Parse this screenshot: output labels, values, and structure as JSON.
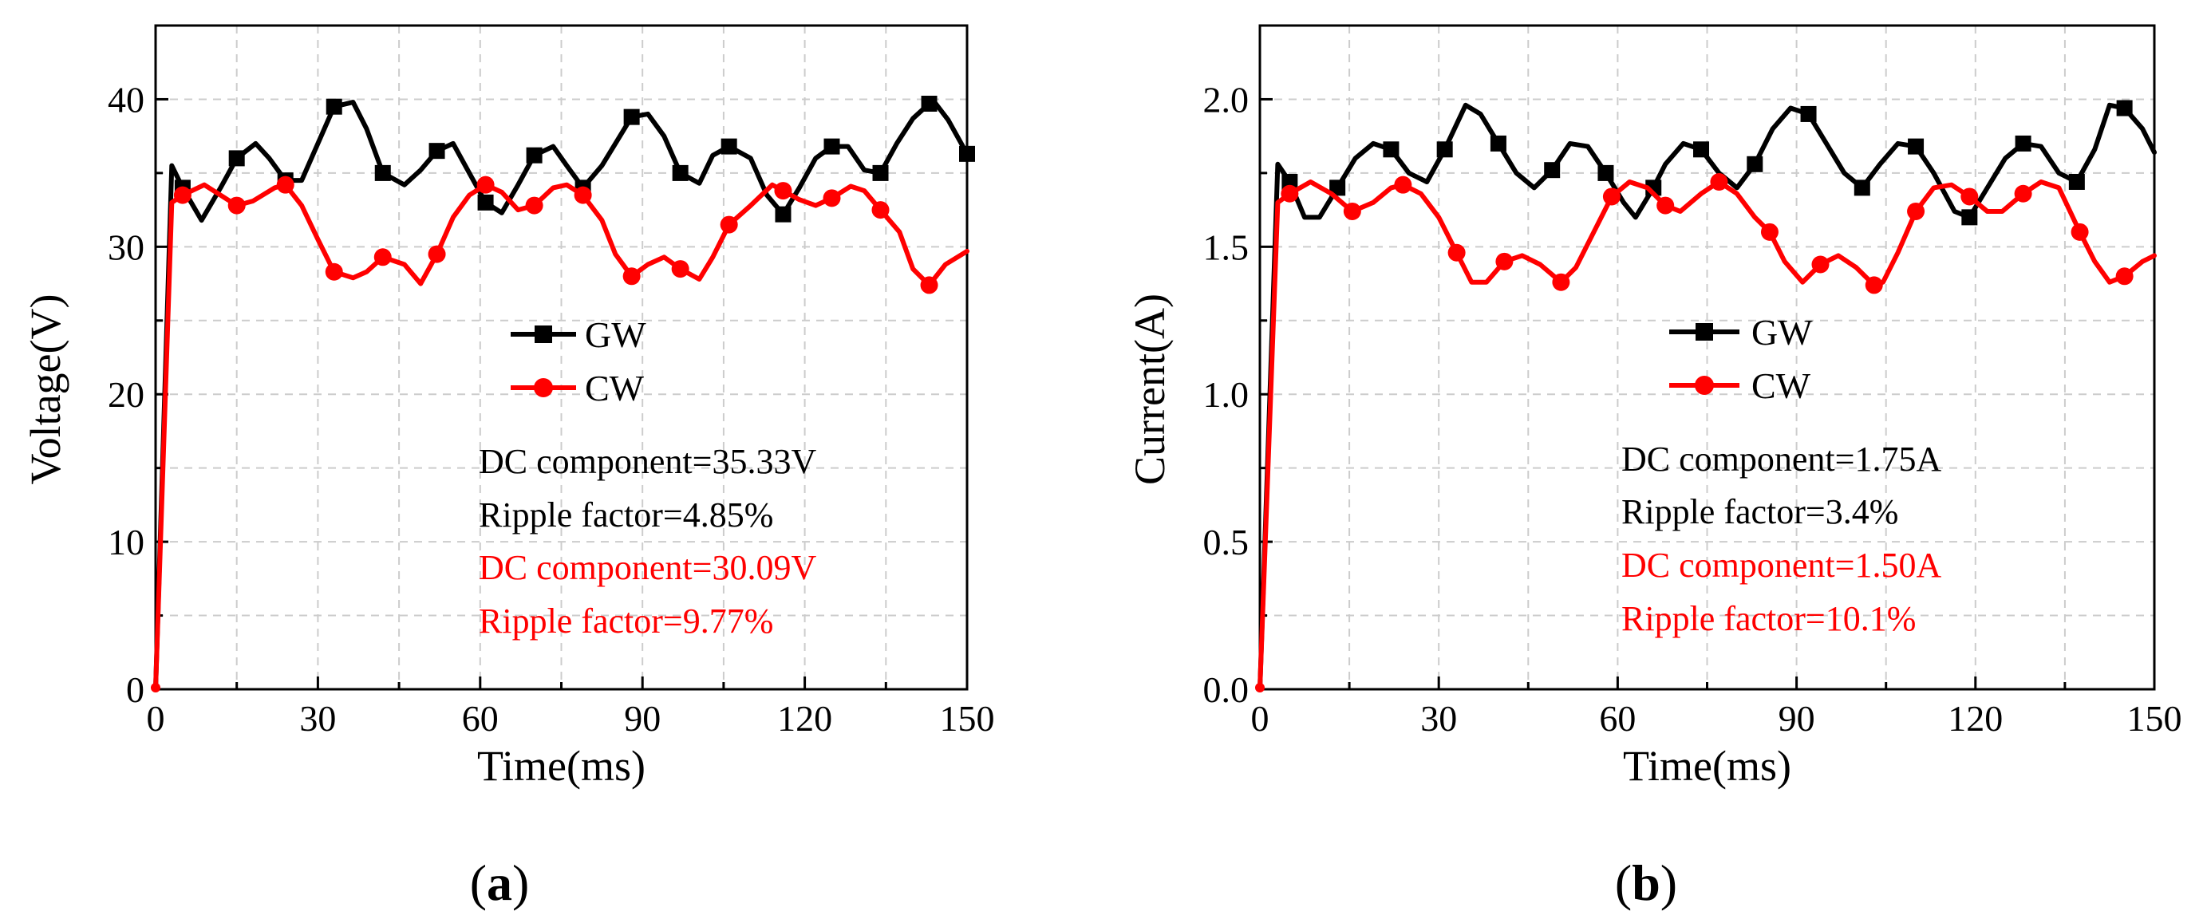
{
  "chart_data": [
    {
      "type": "line",
      "panel_label": "a",
      "xlabel": "Time(ms)",
      "ylabel": "Voltage(V)",
      "xlim": [
        0,
        150
      ],
      "ylim": [
        0,
        45
      ],
      "xticks": [
        0,
        30,
        60,
        90,
        120,
        150
      ],
      "xtick_labels": [
        "0",
        "30",
        "60",
        "90",
        "120",
        "150"
      ],
      "yticks": [
        0,
        10,
        20,
        30,
        40
      ],
      "ytick_labels": [
        "0",
        "10",
        "20",
        "30",
        "40"
      ],
      "grid": true,
      "legend": {
        "placement": "center-right",
        "entries": [
          "GW",
          "CW"
        ]
      },
      "series": [
        {
          "name": "GW",
          "color": "#000000",
          "marker": "square",
          "x": [
            0,
            3,
            5,
            8.5,
            12,
            15,
            18.5,
            21,
            24,
            27,
            30,
            33,
            36.5,
            39,
            42,
            46,
            49,
            52,
            55,
            58,
            61,
            64,
            67,
            70,
            73.5,
            76,
            79,
            82.5,
            85,
            88,
            91,
            94,
            97,
            100.5,
            103,
            106,
            110,
            113,
            116,
            119,
            122,
            125,
            128,
            131,
            134,
            137,
            140,
            143,
            144,
            146.5,
            150
          ],
          "y": [
            0,
            35.5,
            34,
            31.8,
            34,
            36,
            37,
            36,
            34.5,
            34.5,
            37,
            39.5,
            39.8,
            38,
            35,
            34.2,
            35.2,
            36.5,
            37,
            35,
            33,
            32.3,
            34.2,
            36.2,
            36.8,
            35.5,
            34,
            35.5,
            37,
            38.8,
            39,
            37.5,
            35,
            34.3,
            36.2,
            36.8,
            36,
            33.5,
            32.2,
            34,
            36,
            36.8,
            36.8,
            35.2,
            35,
            37,
            38.7,
            39.7,
            39.8,
            38.6,
            36.3
          ]
        },
        {
          "name": "CW",
          "color": "#ff0000",
          "marker": "circle",
          "x": [
            0,
            3,
            5,
            9,
            12,
            15,
            18,
            22,
            24,
            27,
            30,
            33,
            36.5,
            39,
            42,
            46,
            49,
            52,
            55,
            58,
            61,
            64,
            67,
            70,
            73.5,
            76,
            79,
            82.5,
            85,
            88,
            91,
            94,
            97,
            100.5,
            103,
            106,
            110,
            114,
            116,
            119,
            122,
            125,
            128.5,
            131,
            134,
            137.5,
            140,
            143,
            146,
            150
          ],
          "y": [
            0,
            33,
            33.5,
            34.2,
            33.5,
            32.8,
            33.1,
            34,
            34.2,
            32.8,
            30.5,
            28.3,
            27.9,
            28.3,
            29.3,
            28.8,
            27.5,
            29.5,
            32,
            33.5,
            34.2,
            33.7,
            32.5,
            32.8,
            34,
            34.2,
            33.5,
            31.8,
            29.5,
            28,
            28.8,
            29.3,
            28.5,
            27.8,
            29.3,
            31.5,
            32.8,
            34.2,
            33.8,
            33.2,
            32.8,
            33.3,
            34.1,
            33.8,
            32.5,
            31,
            28.5,
            27.4,
            28.8,
            29.7
          ]
        }
      ],
      "annotations": [
        {
          "text": "DC component=35.33V",
          "color": "#000000"
        },
        {
          "text": "Ripple factor=4.85%",
          "color": "#000000"
        },
        {
          "text": "DC component=30.09V",
          "color": "#ff0000"
        },
        {
          "text": "Ripple factor=9.77%",
          "color": "#ff0000"
        }
      ]
    },
    {
      "type": "line",
      "panel_label": "b",
      "xlabel": "Time(ms)",
      "ylabel": "Current(A)",
      "xlim": [
        0,
        150
      ],
      "ylim": [
        0,
        2.25
      ],
      "xticks": [
        0,
        30,
        60,
        90,
        120,
        150
      ],
      "xtick_labels": [
        "0",
        "30",
        "60",
        "90",
        "120",
        "150"
      ],
      "yticks": [
        0,
        0.5,
        1.0,
        1.5,
        2.0
      ],
      "ytick_labels": [
        "0.0",
        "0.5",
        "1.0",
        "1.5",
        "2.0"
      ],
      "grid": true,
      "legend": {
        "placement": "center-right",
        "entries": [
          "GW",
          "CW"
        ]
      },
      "series": [
        {
          "name": "GW",
          "color": "#000000",
          "marker": "square",
          "x": [
            0,
            3,
            5,
            7.5,
            10,
            13,
            16,
            19,
            22,
            25,
            28,
            31,
            34.5,
            37,
            40,
            43,
            46,
            49,
            52,
            55,
            58,
            61,
            63,
            66,
            68,
            71,
            74,
            77,
            80,
            83,
            86,
            89,
            92,
            95,
            98,
            101,
            104,
            107,
            110,
            113,
            116.5,
            119,
            122,
            125,
            128,
            131,
            134,
            137,
            140,
            142.5,
            145,
            148,
            150
          ],
          "y": [
            0,
            1.78,
            1.72,
            1.6,
            1.6,
            1.7,
            1.8,
            1.85,
            1.83,
            1.75,
            1.72,
            1.83,
            1.98,
            1.95,
            1.85,
            1.75,
            1.7,
            1.76,
            1.85,
            1.84,
            1.75,
            1.65,
            1.6,
            1.7,
            1.78,
            1.85,
            1.83,
            1.75,
            1.7,
            1.78,
            1.9,
            1.97,
            1.95,
            1.85,
            1.75,
            1.7,
            1.78,
            1.85,
            1.84,
            1.75,
            1.62,
            1.6,
            1.7,
            1.8,
            1.85,
            1.84,
            1.75,
            1.72,
            1.83,
            1.98,
            1.97,
            1.9,
            1.82
          ]
        },
        {
          "name": "CW",
          "color": "#ff0000",
          "marker": "circle",
          "x": [
            0,
            3,
            5,
            8.5,
            12,
            15.5,
            19,
            22,
            24,
            27,
            30,
            33,
            35.5,
            38,
            41,
            44,
            47,
            50.5,
            53,
            56,
            59,
            62,
            65,
            68,
            70.5,
            74,
            77,
            80,
            83,
            85.5,
            88,
            91,
            94,
            97,
            100,
            103,
            104.5,
            107,
            110,
            113,
            116,
            119,
            122,
            124.5,
            128,
            131,
            134,
            137.5,
            140,
            142.5,
            145,
            148,
            150
          ],
          "y": [
            0,
            1.65,
            1.68,
            1.72,
            1.68,
            1.62,
            1.65,
            1.7,
            1.71,
            1.68,
            1.6,
            1.48,
            1.38,
            1.38,
            1.45,
            1.47,
            1.44,
            1.38,
            1.43,
            1.55,
            1.67,
            1.72,
            1.7,
            1.64,
            1.62,
            1.68,
            1.72,
            1.68,
            1.6,
            1.55,
            1.45,
            1.38,
            1.44,
            1.47,
            1.43,
            1.37,
            1.38,
            1.48,
            1.62,
            1.7,
            1.71,
            1.67,
            1.62,
            1.62,
            1.68,
            1.72,
            1.7,
            1.55,
            1.45,
            1.38,
            1.4,
            1.45,
            1.47
          ]
        }
      ],
      "annotations": [
        {
          "text": "DC component=1.75A",
          "color": "#000000"
        },
        {
          "text": "Ripple factor=3.4%",
          "color": "#000000"
        },
        {
          "text": "DC component=1.50A",
          "color": "#ff0000"
        },
        {
          "text": "Ripple factor=10.1%",
          "color": "#ff0000"
        }
      ]
    }
  ]
}
